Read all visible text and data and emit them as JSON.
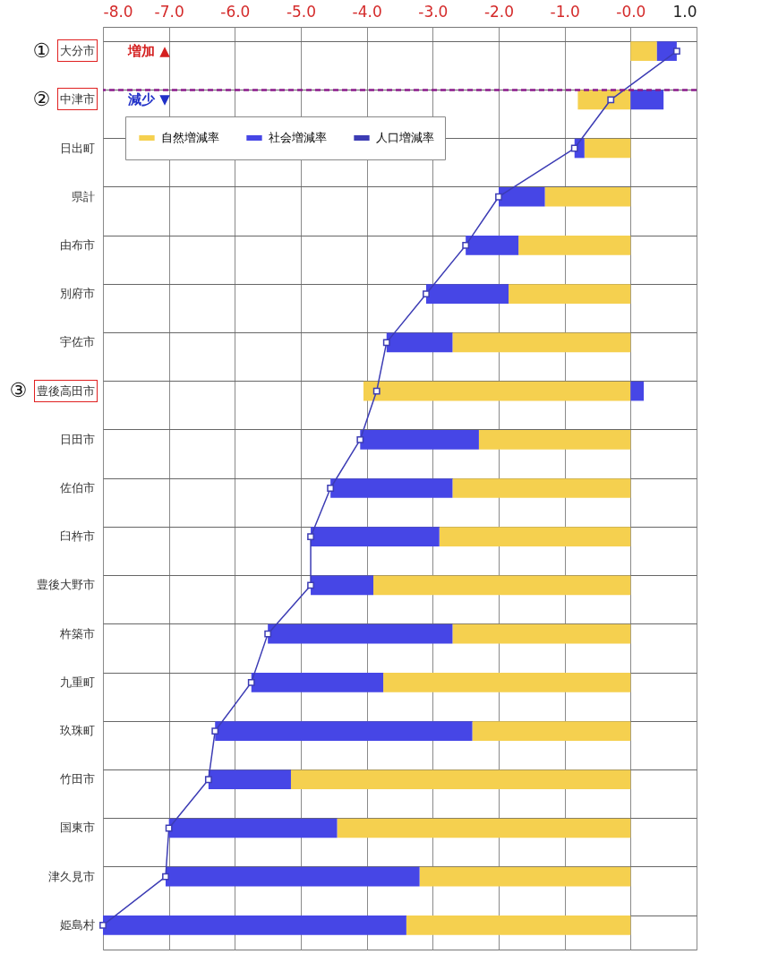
{
  "chart_data": {
    "type": "bar",
    "orientation": "horizontal",
    "stacked": true,
    "categories": [
      "大分市",
      "中津市",
      "日出町",
      "県計",
      "由布市",
      "別府市",
      "宇佐市",
      "豊後高田市",
      "日田市",
      "佐伯市",
      "臼杵市",
      "豊後大野市",
      "杵築市",
      "九重町",
      "玖珠町",
      "竹田市",
      "国東市",
      "津久見市",
      "姫島村"
    ],
    "series": [
      {
        "name": "自然増減率",
        "color": "#f5d04f",
        "values": [
          0.4,
          -0.8,
          -0.7,
          -1.3,
          -1.7,
          -1.85,
          -2.7,
          -4.05,
          -2.3,
          -2.7,
          -2.9,
          -3.9,
          -2.7,
          -3.75,
          -2.4,
          -5.15,
          -4.45,
          -3.2,
          -3.4
        ]
      },
      {
        "name": "社会増減率",
        "color": "#4646e6",
        "values": [
          0.3,
          0.5,
          -0.15,
          -0.7,
          -0.8,
          -1.25,
          -1.0,
          0.2,
          -1.8,
          -1.85,
          -1.95,
          -0.95,
          -2.8,
          -2.0,
          -3.9,
          -1.25,
          -2.55,
          -3.85,
          -4.6
        ]
      },
      {
        "name": "人口増減率",
        "type": "line",
        "color": "#3c3cb4",
        "values": [
          0.7,
          -0.3,
          -0.85,
          -2.0,
          -2.5,
          -3.1,
          -3.7,
          -3.85,
          -4.1,
          -4.55,
          -4.85,
          -4.85,
          -5.5,
          -5.75,
          -6.3,
          -6.4,
          -7.0,
          -7.05,
          -8.0
        ]
      }
    ],
    "xlim": [
      -8,
      1
    ],
    "xticks": [
      {
        "value": -8,
        "label": "-8.0"
      },
      {
        "value": -7,
        "label": "-7.0"
      },
      {
        "value": -6,
        "label": "-6.0"
      },
      {
        "value": -5,
        "label": "-5.0"
      },
      {
        "value": -4,
        "label": "-4.0"
      },
      {
        "value": -3,
        "label": "-3.0"
      },
      {
        "value": -2,
        "label": "-2.0"
      },
      {
        "value": -1,
        "label": "-1.0"
      },
      {
        "value": 0,
        "label": "-0.0"
      },
      {
        "value": 1,
        "label": "1.0"
      }
    ],
    "ref_lines": [
      {
        "axis": "y",
        "value": "中津市",
        "color": "#8b1a8b",
        "line_style": "dashed"
      }
    ],
    "annotations": [
      "増加 ▲",
      "減少 ▼",
      "①",
      "②",
      "③"
    ],
    "grid": true,
    "legend": "top left",
    "marker": "square",
    "line_style": "solid"
  }
}
